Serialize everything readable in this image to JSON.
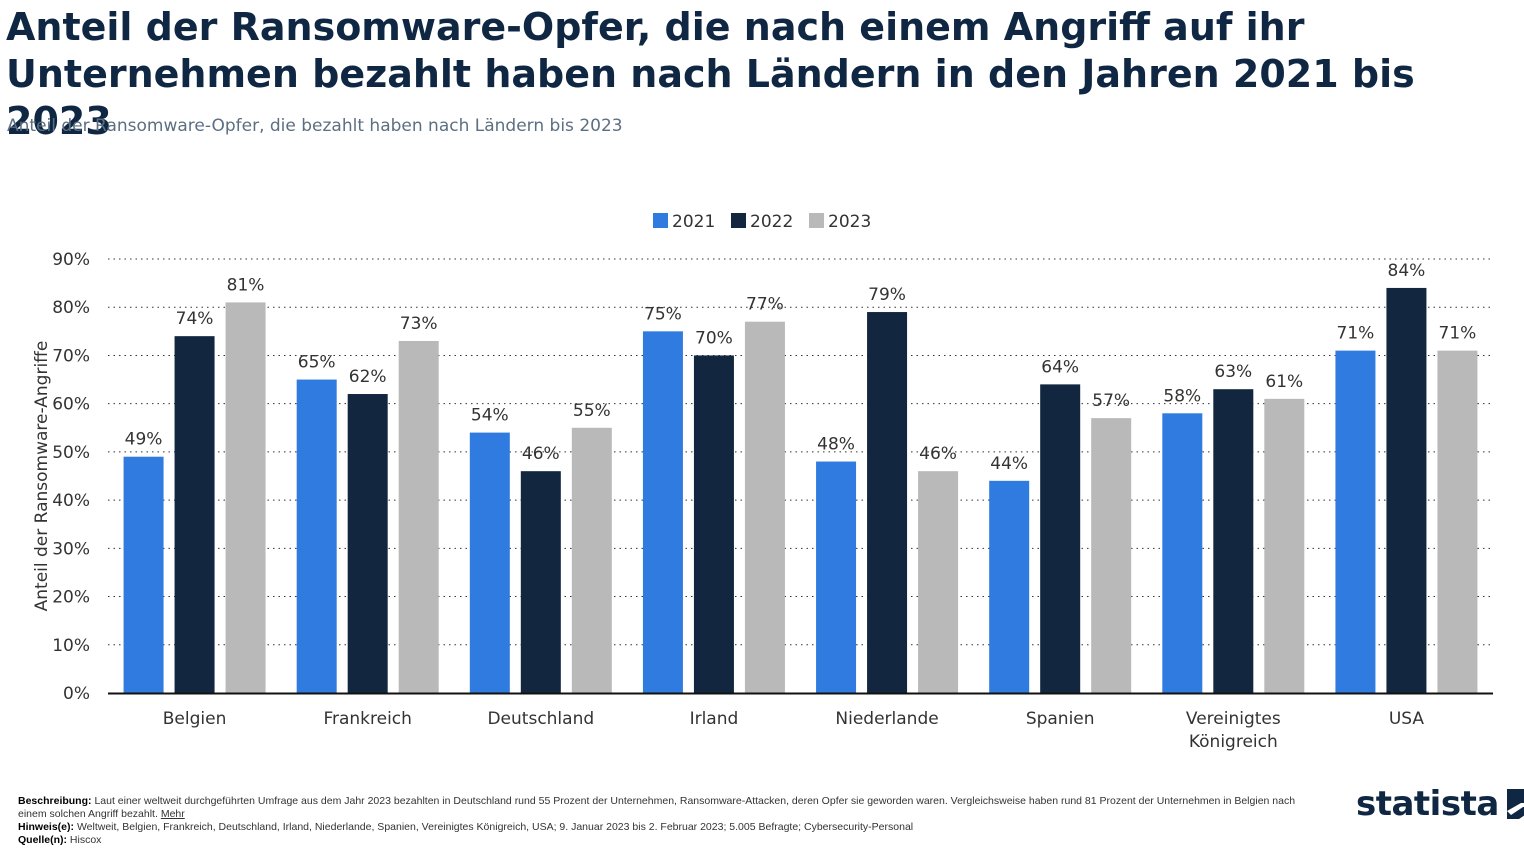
{
  "title": "Anteil der Ransomware-Opfer, die nach einem Angriff auf ihr Unternehmen bezahlt haben nach Ländern in den Jahren 2021 bis 2023",
  "subtitle": "Anteil der Ransomware-Opfer, die bezahlt haben nach Ländern bis 2023",
  "chart_data": {
    "type": "bar",
    "categories": [
      "Belgien",
      "Frankreich",
      "Deutschland",
      "Irland",
      "Niederlande",
      "Spanien",
      "Vereinigtes Königreich",
      "USA"
    ],
    "category_lines": [
      [
        "Belgien"
      ],
      [
        "Frankreich"
      ],
      [
        "Deutschland"
      ],
      [
        "Irland"
      ],
      [
        "Niederlande"
      ],
      [
        "Spanien"
      ],
      [
        "Vereinigtes",
        "Königreich"
      ],
      [
        "USA"
      ]
    ],
    "series": [
      {
        "name": "2021",
        "color": "#2f7be0",
        "values": [
          49,
          65,
          54,
          75,
          48,
          44,
          58,
          71
        ]
      },
      {
        "name": "2022",
        "color": "#12263f",
        "values": [
          74,
          62,
          46,
          70,
          79,
          64,
          63,
          84
        ]
      },
      {
        "name": "2023",
        "color": "#b9b9b9",
        "values": [
          81,
          73,
          55,
          77,
          46,
          57,
          61,
          71
        ]
      }
    ],
    "ylabel": "Anteil der Ransomware-Angriffe",
    "ylim": [
      0,
      90
    ],
    "yticks": [
      0,
      10,
      20,
      30,
      40,
      50,
      60,
      70,
      80,
      90
    ],
    "value_suffix": "%",
    "grid": true,
    "legend_position": "top-center"
  },
  "footer": {
    "description_label": "Beschreibung:",
    "description_text": "Laut einer weltweit durchgeführten Umfrage aus dem Jahr 2023 bezahlten in Deutschland rund 55 Prozent der Unternehmen, Ransomware-Attacken, deren Opfer sie geworden waren. Vergleichsweise haben rund 81 Prozent der Unternehmen in Belgien nach einem solchen Angriff bezahlt.",
    "more_link": "Mehr",
    "note_label": "Hinweis(e):",
    "note_text": "Weltweit, Belgien, Frankreich, Deutschland, Irland, Niederlande, Spanien, Vereinigtes Königreich, USA; 9. Januar 2023 bis 2. Februar 2023; 5.005 Befragte; Cybersecurity-Personal",
    "source_label": "Quelle(n):",
    "source_text": "Hiscox"
  },
  "logo": {
    "text": "statista",
    "icon": "statista-logo-icon"
  }
}
